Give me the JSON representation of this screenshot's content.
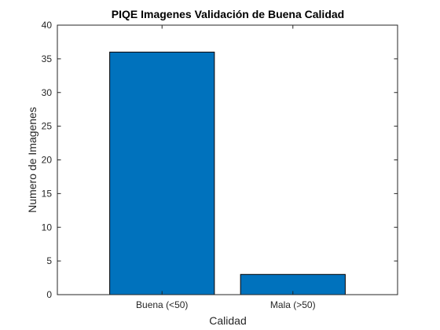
{
  "chart_data": {
    "type": "bar",
    "title": "PIQE Imagenes Validación de Buena Calidad",
    "xlabel": "Calidad",
    "ylabel": "Numero de Imagenes",
    "categories": [
      "Buena (<50)",
      "Mala (>50)"
    ],
    "values": [
      36,
      3
    ],
    "ylim": [
      0,
      40
    ],
    "yticks": [
      0,
      5,
      10,
      15,
      20,
      25,
      30,
      35,
      40
    ],
    "xlim": [
      0.2,
      2.8
    ],
    "grid": false,
    "legend": "none",
    "bar_color": "#0072BD",
    "bar_edge_color": "#000000"
  }
}
